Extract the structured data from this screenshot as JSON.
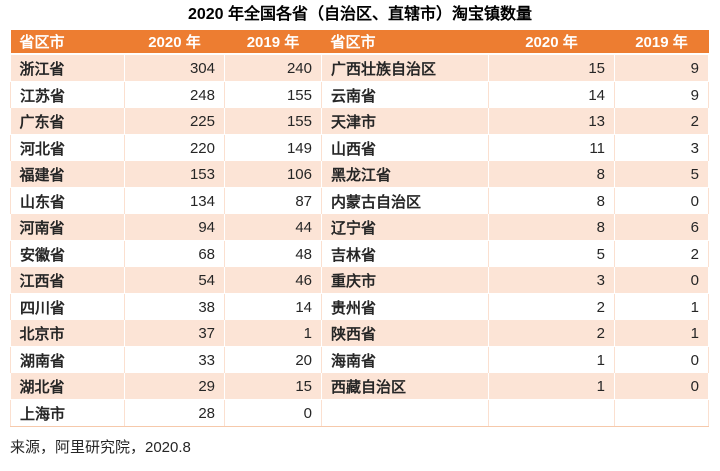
{
  "chart_data": {
    "type": "table",
    "title": "2020 年全国各省（自治区、直辖市）淘宝镇数量",
    "columns": [
      "省区市",
      "2020 年",
      "2019 年",
      "省区市",
      "2020 年",
      "2019 年"
    ],
    "rows": [
      [
        "浙江省",
        "304",
        "240",
        "广西壮族自治区",
        "15",
        "9"
      ],
      [
        "江苏省",
        "248",
        "155",
        "云南省",
        "14",
        "9"
      ],
      [
        "广东省",
        "225",
        "155",
        "天津市",
        "13",
        "2"
      ],
      [
        "河北省",
        "220",
        "149",
        "山西省",
        "11",
        "3"
      ],
      [
        "福建省",
        "153",
        "106",
        "黑龙江省",
        "8",
        "5"
      ],
      [
        "山东省",
        "134",
        "87",
        "内蒙古自治区",
        "8",
        "0"
      ],
      [
        "河南省",
        "94",
        "44",
        "辽宁省",
        "8",
        "6"
      ],
      [
        "安徽省",
        "68",
        "48",
        "吉林省",
        "5",
        "2"
      ],
      [
        "江西省",
        "54",
        "46",
        "重庆市",
        "3",
        "0"
      ],
      [
        "四川省",
        "38",
        "14",
        "贵州省",
        "2",
        "1"
      ],
      [
        "北京市",
        "37",
        "1",
        "陕西省",
        "2",
        "1"
      ],
      [
        "湖南省",
        "33",
        "20",
        "海南省",
        "1",
        "0"
      ],
      [
        "湖北省",
        "29",
        "15",
        "西藏自治区",
        "1",
        "0"
      ],
      [
        "上海市",
        "28",
        "0",
        "",
        "",
        ""
      ]
    ],
    "source_note": "来源，阿里研究院，2020.8",
    "layout_hints": {
      "grid": "alternating row shading, light peach grid lines",
      "legend": "none"
    }
  },
  "colors": {
    "header_bg": "#ED7D31",
    "header_text": "#FFFFFF",
    "row_alt_bg": "#FCE4D6",
    "row_bg": "#FFFFFF",
    "border": "#F6C9AB",
    "text": "#262626",
    "title_text": "#000000"
  }
}
